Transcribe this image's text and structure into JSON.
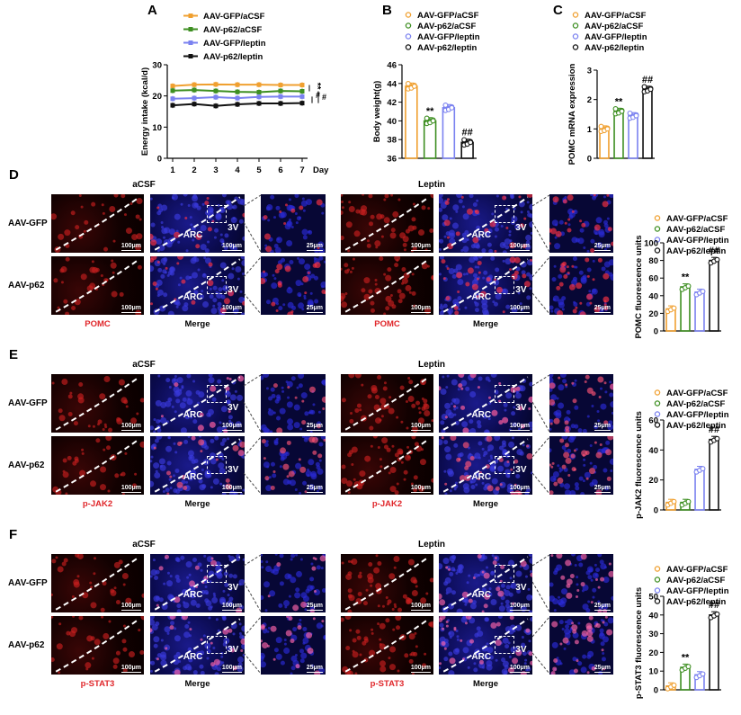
{
  "panels": {
    "A": "A",
    "B": "B",
    "C": "C",
    "D": "D",
    "E": "E",
    "F": "F"
  },
  "colors": {
    "gfp_acsf": "#f0a030",
    "p62_acsf": "#3e8f22",
    "gfp_leptin": "#7b82f0",
    "p62_leptin": "#111111",
    "pomc_label": "#e0262a"
  },
  "groups": [
    "AAV-GFP/aCSF",
    "AAV-p62/aCSF",
    "AAV-GFP/leptin",
    "AAV-p62/leptin"
  ],
  "micrographs": {
    "col_titles": [
      "aCSF",
      "Leptin"
    ],
    "row_labels": [
      "AAV-GFP",
      "AAV-p62"
    ],
    "captions": {
      "D": [
        "POMC",
        "Merge",
        "POMC",
        "Merge"
      ],
      "E": [
        "p-JAK2",
        "Merge",
        "p-JAK2",
        "Merge"
      ],
      "F": [
        "p-STAT3",
        "Merge",
        "p-STAT3",
        "Merge"
      ]
    },
    "scale_large": "100μm",
    "scale_small": "25μm",
    "arc": "ARC",
    "v3": "3V"
  },
  "chart_data": [
    {
      "panel": "A",
      "type": "line",
      "ylabel": "Energy intake (kcal/d)",
      "xlabel": "Day",
      "x": [
        1,
        2,
        3,
        4,
        5,
        6,
        7
      ],
      "ylim": [
        0,
        30
      ],
      "yticks": [
        0,
        10,
        20,
        30
      ],
      "series": [
        {
          "name": "AAV-GFP/aCSF",
          "values": [
            23.2,
            23.6,
            23.7,
            23.6,
            23.6,
            23.5,
            23.5
          ]
        },
        {
          "name": "AAV-p62/aCSF",
          "values": [
            21.7,
            21.9,
            21.6,
            21.3,
            21.2,
            21.6,
            21.5
          ]
        },
        {
          "name": "AAV-GFP/leptin",
          "values": [
            19.1,
            19.3,
            19.6,
            19.3,
            19.7,
            19.8,
            19.8
          ]
        },
        {
          "name": "AAV-p62/leptin",
          "values": [
            17.0,
            17.4,
            16.8,
            17.3,
            17.6,
            17.6,
            17.7
          ]
        }
      ],
      "annotations": [
        "**",
        "#",
        "#"
      ]
    },
    {
      "panel": "B",
      "type": "bar",
      "ylabel": "Body weight(g)",
      "categories": [
        "AAV-GFP/aCSF",
        "AAV-p62/aCSF",
        "AAV-GFP/leptin",
        "AAV-p62/leptin"
      ],
      "values": [
        43.7,
        40.0,
        41.4,
        37.7
      ],
      "ylim": [
        36,
        46
      ],
      "yticks": [
        36,
        38,
        40,
        42,
        44,
        46
      ],
      "annotations": [
        "",
        "**",
        "",
        "##"
      ]
    },
    {
      "panel": "C",
      "type": "bar",
      "ylabel": "POMC mRNA expression",
      "categories": [
        "AAV-GFP/aCSF",
        "AAV-p62/aCSF",
        "AAV-GFP/leptin",
        "AAV-p62/leptin"
      ],
      "values": [
        1.0,
        1.6,
        1.45,
        2.35
      ],
      "ylim": [
        0,
        3
      ],
      "yticks": [
        0,
        1,
        2,
        3
      ],
      "annotations": [
        "",
        "**",
        "",
        "##"
      ]
    },
    {
      "panel": "D",
      "type": "bar",
      "ylabel": "POMC fluorescence units",
      "categories": [
        "AAV-GFP/aCSF",
        "AAV-p62/aCSF",
        "AAV-GFP/leptin",
        "AAV-p62/leptin"
      ],
      "values": [
        25,
        50,
        44,
        80
      ],
      "ylim": [
        0,
        100
      ],
      "yticks": [
        0,
        20,
        40,
        60,
        80,
        100
      ],
      "annotations": [
        "",
        "**",
        "",
        "##"
      ]
    },
    {
      "panel": "E",
      "type": "bar",
      "ylabel": "p-JAK2 fluorescence units",
      "categories": [
        "AAV-GFP/aCSF",
        "AAV-p62/aCSF",
        "AAV-GFP/leptin",
        "AAV-p62/leptin"
      ],
      "values": [
        5,
        5,
        27,
        47
      ],
      "ylim": [
        0,
        60
      ],
      "yticks": [
        0,
        20,
        40,
        60
      ],
      "annotations": [
        "",
        "",
        "",
        "##"
      ]
    },
    {
      "panel": "F",
      "type": "bar",
      "ylabel": "p-STAT3 fluorescence units",
      "categories": [
        "AAV-GFP/aCSF",
        "AAV-p62/aCSF",
        "AAV-GFP/leptin",
        "AAV-p62/leptin"
      ],
      "values": [
        2,
        12,
        8,
        40
      ],
      "ylim": [
        0,
        50
      ],
      "yticks": [
        0,
        10,
        20,
        30,
        40,
        50
      ],
      "annotations": [
        "",
        "**",
        "",
        "##"
      ]
    }
  ]
}
